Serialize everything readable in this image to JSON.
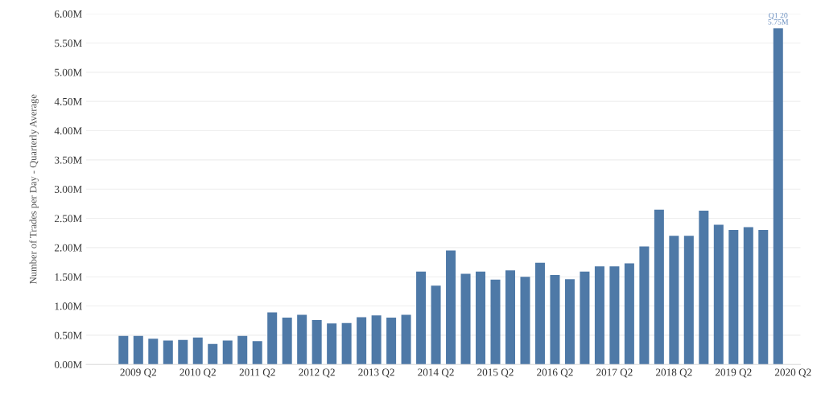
{
  "chart_data": {
    "type": "bar",
    "ylabel": "Number of Trades per Day - Quarterly Average",
    "categories": [
      null,
      "2009 Q2",
      null,
      null,
      null,
      "2010 Q2",
      null,
      null,
      null,
      "2011 Q2",
      null,
      null,
      null,
      "2012 Q2",
      null,
      null,
      null,
      "2013 Q2",
      null,
      null,
      null,
      "2014 Q2",
      null,
      null,
      null,
      "2015 Q2",
      null,
      null,
      null,
      "2016 Q2",
      null,
      null,
      null,
      "2017 Q2",
      null,
      null,
      null,
      "2018 Q2",
      null,
      null,
      null,
      "2019 Q2",
      null,
      null,
      null,
      "2020 Q2"
    ],
    "values": [
      0.49,
      0.49,
      0.44,
      0.41,
      0.42,
      0.46,
      0.35,
      0.41,
      0.49,
      0.4,
      0.89,
      0.8,
      0.85,
      0.76,
      0.7,
      0.71,
      0.81,
      0.84,
      0.8,
      0.85,
      1.59,
      1.35,
      1.95,
      1.55,
      1.59,
      1.45,
      1.61,
      1.5,
      1.74,
      1.53,
      1.46,
      1.59,
      1.68,
      1.68,
      1.73,
      2.02,
      2.65,
      2.2,
      2.2,
      2.63,
      2.39,
      2.3,
      2.35,
      2.3,
      5.75,
      null
    ],
    "value_labels": [
      null,
      null,
      null,
      null,
      null,
      null,
      null,
      null,
      null,
      null,
      null,
      null,
      null,
      null,
      null,
      null,
      null,
      null,
      null,
      null,
      null,
      null,
      null,
      null,
      null,
      null,
      null,
      null,
      null,
      null,
      null,
      null,
      null,
      null,
      null,
      null,
      null,
      null,
      null,
      null,
      null,
      null,
      null,
      null,
      "Q1 20\n5.75M",
      null
    ],
    "color": "#4e79a7",
    "ylim": [
      0,
      6
    ],
    "yticks": [
      {
        "value": 0,
        "label": "0.00M"
      },
      {
        "value": 0.5,
        "label": "0.50M"
      },
      {
        "value": 1,
        "label": "1.00M"
      },
      {
        "value": 1.5,
        "label": "1.50M"
      },
      {
        "value": 2,
        "label": "2.00M"
      },
      {
        "value": 2.5,
        "label": "2.50M"
      },
      {
        "value": 3,
        "label": "3.00M"
      },
      {
        "value": 3.5,
        "label": "3.50M"
      },
      {
        "value": 4,
        "label": "4.00M"
      },
      {
        "value": 4.5,
        "label": "4.50M"
      },
      {
        "value": 5,
        "label": "5.00M"
      },
      {
        "value": 5.5,
        "label": "5.50M"
      },
      {
        "value": 6,
        "label": "6.00M"
      }
    ],
    "grid": "y"
  }
}
